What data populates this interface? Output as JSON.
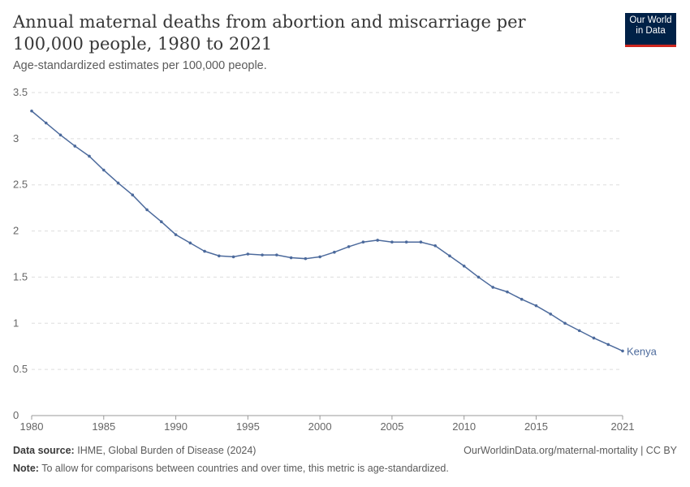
{
  "header": {
    "title": "Annual maternal deaths from abortion and miscarriage per 100,000 people, 1980 to 2021",
    "subtitle": "Age-standardized estimates per 100,000 people.",
    "logo": "Our World in Data"
  },
  "footer": {
    "source_label": "Data source:",
    "source": "IHME, Global Burden of Disease (2024)",
    "url": "OurWorldinData.org/maternal-mortality | CC BY",
    "note_label": "Note:",
    "note": "To allow for comparisons between countries and over time, this metric is age-standardized."
  },
  "chart_data": {
    "type": "line",
    "title": "Annual maternal deaths from abortion and miscarriage per 100,000 people, 1980 to 2021",
    "xlim": [
      1980,
      2021
    ],
    "ylim": [
      0,
      3.5
    ],
    "xticks": [
      "1980",
      "1985",
      "1990",
      "1995",
      "2000",
      "2005",
      "2010",
      "2015",
      "2021"
    ],
    "yticks": [
      "0",
      "0.5",
      "1",
      "1.5",
      "2",
      "2.5",
      "3",
      "3.5"
    ],
    "grid": "horizontal dashed",
    "color": "#4c6a9c",
    "x": [
      1980,
      1981,
      1982,
      1983,
      1984,
      1985,
      1986,
      1987,
      1988,
      1989,
      1990,
      1991,
      1992,
      1993,
      1994,
      1995,
      1996,
      1997,
      1998,
      1999,
      2000,
      2001,
      2002,
      2003,
      2004,
      2005,
      2006,
      2007,
      2008,
      2009,
      2010,
      2011,
      2012,
      2013,
      2014,
      2015,
      2016,
      2017,
      2018,
      2019,
      2020,
      2021
    ],
    "series": [
      {
        "name": "Kenya",
        "values": [
          3.3,
          3.17,
          3.04,
          2.92,
          2.81,
          2.66,
          2.52,
          2.39,
          2.23,
          2.1,
          1.96,
          1.87,
          1.78,
          1.73,
          1.72,
          1.75,
          1.74,
          1.74,
          1.71,
          1.7,
          1.72,
          1.77,
          1.83,
          1.88,
          1.9,
          1.88,
          1.88,
          1.88,
          1.84,
          1.73,
          1.62,
          1.5,
          1.39,
          1.34,
          1.26,
          1.19,
          1.1,
          1.0,
          0.92,
          0.84,
          0.77,
          0.7
        ]
      }
    ]
  }
}
